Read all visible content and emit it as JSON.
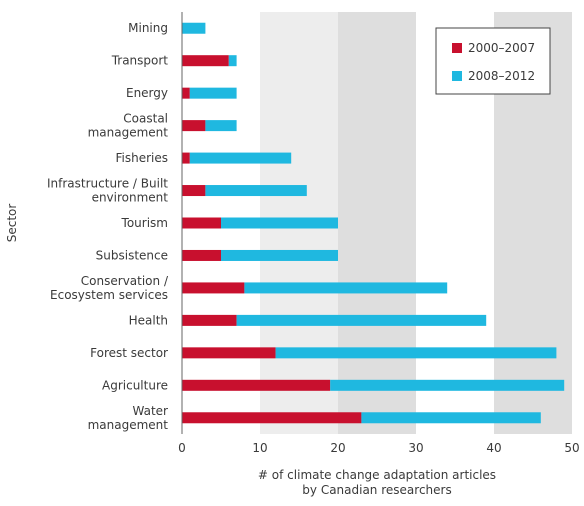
{
  "chart_data": {
    "type": "bar",
    "orientation": "horizontal",
    "stacked": true,
    "categories": [
      [
        "Mining"
      ],
      [
        "Transport"
      ],
      [
        "Energy"
      ],
      [
        "Coastal",
        "management"
      ],
      [
        "Fisheries"
      ],
      [
        "Infrastructure / Built",
        "environment"
      ],
      [
        "Tourism"
      ],
      [
        "Subsistence"
      ],
      [
        "Conservation /",
        "Ecosystem services"
      ],
      [
        "Health"
      ],
      [
        "Forest sector"
      ],
      [
        "Agriculture"
      ],
      [
        "Water",
        "management"
      ]
    ],
    "series": [
      {
        "name": "2000–2007",
        "color": "#c8102e",
        "values": [
          0,
          6,
          1,
          3,
          1,
          3,
          5,
          5,
          8,
          7,
          12,
          19,
          23
        ]
      },
      {
        "name": "2008–2012",
        "color": "#1fb8e0",
        "values": [
          3,
          1,
          6,
          4,
          13,
          13,
          15,
          15,
          26,
          32,
          36,
          30,
          23
        ]
      }
    ],
    "xlabel": [
      "# of climate change adaptation articles",
      "by Canadian researchers"
    ],
    "ylabel": "Sector",
    "xlim": [
      0,
      50
    ],
    "xticks": [
      "0",
      "10",
      "20",
      "30",
      "40",
      "50"
    ],
    "background_bands": [
      "#ffffff",
      "#ededed",
      "#dedede",
      "#ffffff",
      "#dedede"
    ],
    "legend_position": "top-right"
  }
}
